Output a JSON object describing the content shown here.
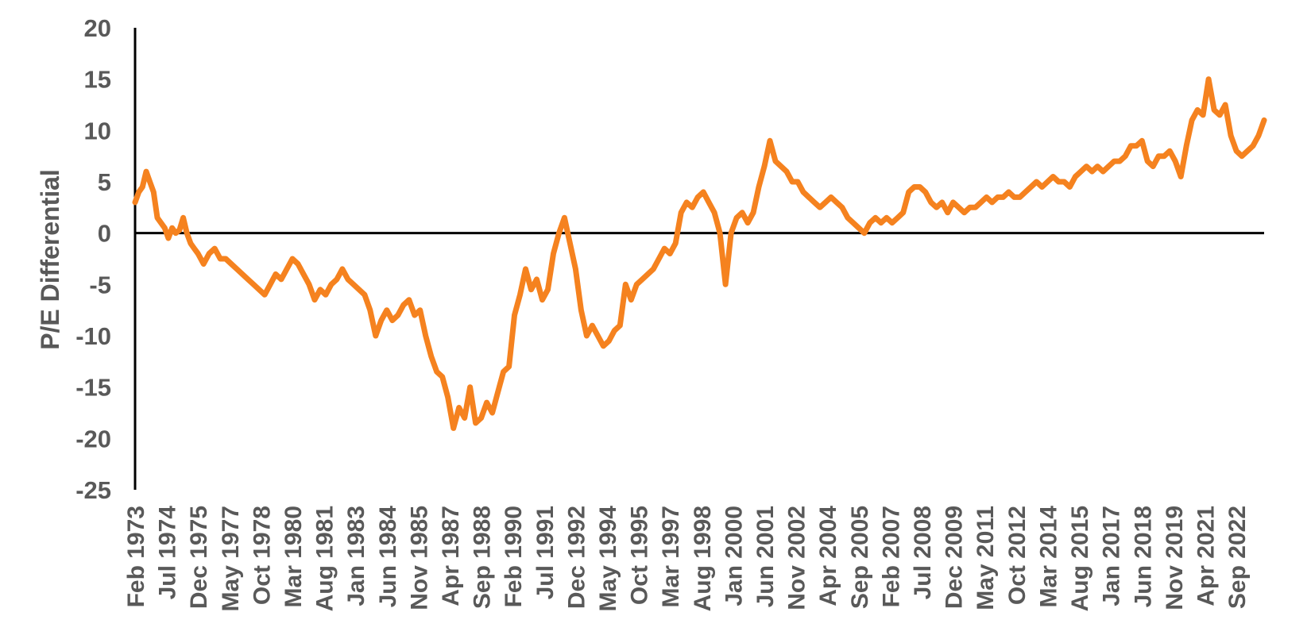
{
  "chart_data": {
    "type": "line",
    "title": "",
    "xlabel": "",
    "ylabel": "P/E Differential",
    "ylim": [
      -25,
      20
    ],
    "yticks": [
      20,
      15,
      10,
      5,
      0,
      -5,
      -10,
      -15,
      -20,
      -25
    ],
    "xlim": [
      "1973-02",
      "2023-12"
    ],
    "grid": false,
    "legend": "none",
    "colors": {
      "series": "#F5821F",
      "axis": "#000000",
      "tick_label": "#595959"
    },
    "xtick_labels": [
      {
        "date": "1973-02",
        "label": "Feb 1973"
      },
      {
        "date": "1974-07",
        "label": "Jul 1974"
      },
      {
        "date": "1975-12",
        "label": "Dec 1975"
      },
      {
        "date": "1977-05",
        "label": "May 1977"
      },
      {
        "date": "1978-10",
        "label": "Oct 1978"
      },
      {
        "date": "1980-03",
        "label": "Mar 1980"
      },
      {
        "date": "1981-08",
        "label": "Aug 1981"
      },
      {
        "date": "1983-01",
        "label": "Jan 1983"
      },
      {
        "date": "1984-06",
        "label": "Jun 1984"
      },
      {
        "date": "1985-11",
        "label": "Nov 1985"
      },
      {
        "date": "1987-04",
        "label": "Apr 1987"
      },
      {
        "date": "1988-09",
        "label": "Sep 1988"
      },
      {
        "date": "1990-02",
        "label": "Feb 1990"
      },
      {
        "date": "1991-07",
        "label": "Jul 1991"
      },
      {
        "date": "1992-12",
        "label": "Dec 1992"
      },
      {
        "date": "1994-05",
        "label": "May 1994"
      },
      {
        "date": "1995-10",
        "label": "Oct 1995"
      },
      {
        "date": "1997-03",
        "label": "Mar 1997"
      },
      {
        "date": "1998-08",
        "label": "Aug 1998"
      },
      {
        "date": "2000-01",
        "label": "Jan 2000"
      },
      {
        "date": "2001-06",
        "label": "Jun 2001"
      },
      {
        "date": "2002-11",
        "label": "Nov 2002"
      },
      {
        "date": "2004-04",
        "label": "Apr 2004"
      },
      {
        "date": "2005-09",
        "label": "Sep 2005"
      },
      {
        "date": "2007-02",
        "label": "Feb 2007"
      },
      {
        "date": "2008-07",
        "label": "Jul 2008"
      },
      {
        "date": "2009-12",
        "label": "Dec 2009"
      },
      {
        "date": "2011-05",
        "label": "May 2011"
      },
      {
        "date": "2012-10",
        "label": "Oct 2012"
      },
      {
        "date": "2014-03",
        "label": "Mar 2014"
      },
      {
        "date": "2015-08",
        "label": "Aug 2015"
      },
      {
        "date": "2017-01",
        "label": "Jan 2017"
      },
      {
        "date": "2018-06",
        "label": "Jun 2018"
      },
      {
        "date": "2019-11",
        "label": "Nov 2019"
      },
      {
        "date": "2021-04",
        "label": "Apr 2021"
      },
      {
        "date": "2022-09",
        "label": "Sep 2022"
      }
    ],
    "series": [
      {
        "x": [
          "1973-02",
          "1973-04",
          "1973-06",
          "1973-08",
          "1973-10",
          "1973-12",
          "1974-02",
          "1974-04",
          "1974-06",
          "1974-08",
          "1974-10",
          "1974-12",
          "1975-02",
          "1975-04",
          "1975-06",
          "1975-08",
          "1975-10",
          "1975-12",
          "1976-03",
          "1976-06",
          "1976-09",
          "1976-12",
          "1977-03",
          "1977-06",
          "1977-09",
          "1977-12",
          "1978-03",
          "1978-06",
          "1978-09",
          "1978-12",
          "1979-03",
          "1979-06",
          "1979-09",
          "1979-12",
          "1980-03",
          "1980-06",
          "1980-09",
          "1980-12",
          "1981-03",
          "1981-06",
          "1981-09",
          "1981-12",
          "1982-03",
          "1982-06",
          "1982-09",
          "1982-12",
          "1983-03",
          "1983-06",
          "1983-09",
          "1983-12",
          "1984-03",
          "1984-06",
          "1984-09",
          "1984-12",
          "1985-03",
          "1985-06",
          "1985-09",
          "1985-12",
          "1986-03",
          "1986-06",
          "1986-09",
          "1986-12",
          "1987-03",
          "1987-06",
          "1987-09",
          "1987-12",
          "1988-03",
          "1988-06",
          "1988-09",
          "1988-12",
          "1989-03",
          "1989-06",
          "1989-09",
          "1989-12",
          "1990-03",
          "1990-06",
          "1990-09",
          "1990-12",
          "1991-03",
          "1991-06",
          "1991-09",
          "1991-12",
          "1992-03",
          "1992-06",
          "1992-09",
          "1992-12",
          "1993-03",
          "1993-06",
          "1993-09",
          "1993-12",
          "1994-03",
          "1994-06",
          "1994-09",
          "1994-12",
          "1995-03",
          "1995-06",
          "1995-09",
          "1995-12",
          "1996-03",
          "1996-06",
          "1996-09",
          "1996-12",
          "1997-03",
          "1997-06",
          "1997-09",
          "1997-12",
          "1998-03",
          "1998-06",
          "1998-09",
          "1998-12",
          "1999-03",
          "1999-06",
          "1999-09",
          "1999-12",
          "2000-03",
          "2000-06",
          "2000-09",
          "2000-12",
          "2001-03",
          "2001-06",
          "2001-09",
          "2001-12",
          "2002-03",
          "2002-06",
          "2002-09",
          "2002-12",
          "2003-03",
          "2003-06",
          "2003-09",
          "2003-12",
          "2004-03",
          "2004-06",
          "2004-09",
          "2004-12",
          "2005-03",
          "2005-06",
          "2005-09",
          "2005-12",
          "2006-03",
          "2006-06",
          "2006-09",
          "2006-12",
          "2007-03",
          "2007-06",
          "2007-09",
          "2007-12",
          "2008-03",
          "2008-06",
          "2008-09",
          "2008-12",
          "2009-03",
          "2009-06",
          "2009-09",
          "2009-12",
          "2010-03",
          "2010-06",
          "2010-09",
          "2010-12",
          "2011-03",
          "2011-06",
          "2011-09",
          "2011-12",
          "2012-03",
          "2012-06",
          "2012-09",
          "2012-12",
          "2013-03",
          "2013-06",
          "2013-09",
          "2013-12",
          "2014-03",
          "2014-06",
          "2014-09",
          "2014-12",
          "2015-03",
          "2015-06",
          "2015-09",
          "2015-12",
          "2016-03",
          "2016-06",
          "2016-09",
          "2016-12",
          "2017-03",
          "2017-06",
          "2017-09",
          "2017-12",
          "2018-03",
          "2018-06",
          "2018-09",
          "2018-12",
          "2019-03",
          "2019-06",
          "2019-09",
          "2019-12",
          "2020-03",
          "2020-06",
          "2020-09",
          "2020-12",
          "2021-03",
          "2021-06",
          "2021-09",
          "2021-12",
          "2022-03",
          "2022-06",
          "2022-09",
          "2022-12",
          "2023-03",
          "2023-06",
          "2023-09",
          "2023-12"
        ],
        "y": [
          3.0,
          4.0,
          4.5,
          6.0,
          5.0,
          4.0,
          1.5,
          1.0,
          0.5,
          -0.5,
          0.5,
          0.0,
          0.3,
          1.5,
          0.0,
          -1.0,
          -1.5,
          -2.0,
          -3.0,
          -2.0,
          -1.5,
          -2.5,
          -2.5,
          -3.0,
          -3.5,
          -4.0,
          -4.5,
          -5.0,
          -5.5,
          -6.0,
          -5.0,
          -4.0,
          -4.5,
          -3.5,
          -2.5,
          -3.0,
          -4.0,
          -5.0,
          -6.5,
          -5.5,
          -6.0,
          -5.0,
          -4.5,
          -3.5,
          -4.5,
          -5.0,
          -5.5,
          -6.0,
          -7.5,
          -10.0,
          -8.5,
          -7.5,
          -8.5,
          -8.0,
          -7.0,
          -6.5,
          -8.0,
          -7.5,
          -10.0,
          -12.0,
          -13.5,
          -14.0,
          -16.0,
          -19.0,
          -17.0,
          -18.0,
          -15.0,
          -18.5,
          -18.0,
          -16.5,
          -17.5,
          -15.5,
          -13.5,
          -13.0,
          -8.0,
          -6.0,
          -3.5,
          -5.5,
          -4.5,
          -6.5,
          -5.5,
          -2.0,
          0.0,
          1.5,
          -1.0,
          -3.5,
          -7.5,
          -10.0,
          -9.0,
          -10.0,
          -11.0,
          -10.5,
          -9.5,
          -9.0,
          -5.0,
          -6.5,
          -5.0,
          -4.5,
          -4.0,
          -3.5,
          -2.5,
          -1.5,
          -2.0,
          -1.0,
          2.0,
          3.0,
          2.5,
          3.5,
          4.0,
          3.0,
          2.0,
          0.0,
          -5.0,
          0.0,
          1.5,
          2.0,
          1.0,
          2.0,
          4.5,
          6.5,
          9.0,
          7.0,
          6.5,
          6.0,
          5.0,
          5.0,
          4.0,
          3.5,
          3.0,
          2.5,
          3.0,
          3.5,
          3.0,
          2.5,
          1.5,
          1.0,
          0.5,
          0.0,
          1.0,
          1.5,
          1.0,
          1.5,
          1.0,
          1.5,
          2.0,
          4.0,
          4.5,
          4.5,
          4.0,
          3.0,
          2.5,
          3.0,
          2.0,
          3.0,
          2.5,
          2.0,
          2.5,
          2.5,
          3.0,
          3.5,
          3.0,
          3.5,
          3.5,
          4.0,
          3.5,
          3.5,
          4.0,
          4.5,
          5.0,
          4.5,
          5.0,
          5.5,
          5.0,
          5.0,
          4.5,
          5.5,
          6.0,
          6.5,
          6.0,
          6.5,
          6.0,
          6.5,
          7.0,
          7.0,
          7.5,
          8.5,
          8.5,
          9.0,
          7.0,
          6.5,
          7.5,
          7.5,
          8.0,
          7.0,
          5.5,
          8.5,
          11.0,
          12.0,
          11.5,
          15.0,
          12.0,
          11.5,
          12.5,
          9.5,
          8.0,
          7.5,
          8.0,
          8.5,
          9.5,
          11.0
        ]
      }
    ]
  }
}
